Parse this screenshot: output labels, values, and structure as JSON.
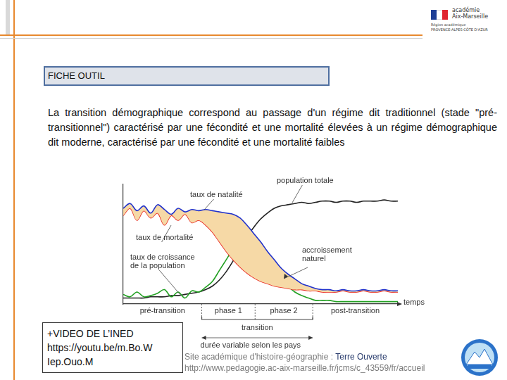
{
  "header": {
    "academy": [
      "académie",
      "Aix-Marseille"
    ],
    "region": [
      "Région académique",
      "PROVENCE-ALPES-CÔTE D'AZUR"
    ]
  },
  "title": "FICHE OUTIL",
  "paragraph": "La transition démographique correspond au passage d'un régime dit traditionnel (stade \"pré-transitionnel\") caractérisé par une fécondité et une mortalité élevées à un régime démographique dit moderne, caractérisé par une fécondité et une mortalité faibles",
  "chart_data": {
    "type": "line",
    "x_label": "temps",
    "x": [
      0,
      2.5,
      5,
      7.5,
      10,
      12.5,
      15,
      17.5,
      20,
      22.5,
      25,
      27.5,
      30,
      32.5,
      35,
      37.5,
      40,
      42.5,
      45,
      47.5,
      50,
      52.5,
      55,
      57.5,
      60,
      62.5,
      65,
      67.5,
      70,
      72.5,
      75,
      77.5,
      80,
      82.5,
      85,
      87.5,
      90,
      92.5,
      95,
      97.5,
      100
    ],
    "series": [
      {
        "name": "taux de natalité",
        "color": "#2233cc",
        "values": [
          80,
          84,
          78,
          82,
          76,
          83,
          79,
          75,
          80,
          77,
          79,
          78,
          79,
          78,
          77,
          76,
          75,
          72,
          66,
          59,
          52,
          44,
          37,
          30,
          25,
          21,
          17,
          15,
          13,
          12,
          12,
          11,
          12,
          11,
          11,
          12,
          11,
          11,
          12,
          11,
          11
        ]
      },
      {
        "name": "taux de mortalité",
        "color": "#e8231a",
        "values": [
          74,
          80,
          70,
          78,
          72,
          76,
          66,
          74,
          70,
          75,
          68,
          70,
          66,
          60,
          52,
          44,
          37,
          31,
          26,
          22,
          19,
          17,
          15,
          14,
          13,
          12,
          12,
          11,
          11,
          10,
          10,
          10,
          11,
          10,
          10,
          11,
          10,
          10,
          11,
          10,
          10
        ]
      },
      {
        "name": "taux de croissance de la population",
        "color": "#22a022",
        "values": [
          8,
          6,
          10,
          6,
          7,
          9,
          12,
          6,
          10,
          5,
          11,
          10,
          14,
          19,
          28,
          37,
          46,
          52,
          54,
          52,
          46,
          38,
          30,
          22,
          15,
          10,
          7,
          5,
          3,
          3,
          3,
          2,
          2,
          2,
          2,
          2,
          2,
          2,
          2,
          2,
          2
        ]
      },
      {
        "name": "population totale",
        "color": "#222222",
        "values": [
          5,
          5,
          5,
          5,
          6,
          6,
          6,
          7,
          7,
          8,
          9,
          10,
          12,
          15,
          20,
          27,
          36,
          46,
          56,
          64,
          71,
          76,
          80,
          82,
          83,
          84,
          85,
          84,
          85,
          86,
          86,
          85,
          86,
          86,
          85,
          86,
          86,
          86,
          87,
          86,
          86
        ]
      }
    ],
    "areas": [
      {
        "label": "accroissement naturel",
        "between": [
          "taux de natalité",
          "taux de mortalité"
        ],
        "color": "#f6d9a6"
      }
    ],
    "phases": [
      {
        "label": "pré-transition",
        "start": 0,
        "end": 28.6
      },
      {
        "label": "phase 1",
        "start": 28.6,
        "end": 48
      },
      {
        "label": "phase 2",
        "start": 48,
        "end": 69
      },
      {
        "label": "post-transition",
        "start": 69,
        "end": 100
      }
    ],
    "transition": {
      "label": "transition",
      "start": 28.6,
      "end": 69,
      "note": "durée variable selon les pays"
    },
    "xlim": [
      0,
      100
    ],
    "ylim": [
      0,
      100
    ],
    "xticks": [],
    "yticks": [],
    "tick_labels": false,
    "grid": false
  },
  "video": [
    "+VIDEO DE L’INED",
    "https://youtu.be/m.Bo.W",
    "Iep.Ouo.M"
  ],
  "footer": {
    "text": "Site académique d'histoire-géographie :",
    "highlight": "Terre Ouverte",
    "url": "http://www.pedagogie.ac-aix-marseille.fr/jcms/c_43559/fr/accueil"
  }
}
